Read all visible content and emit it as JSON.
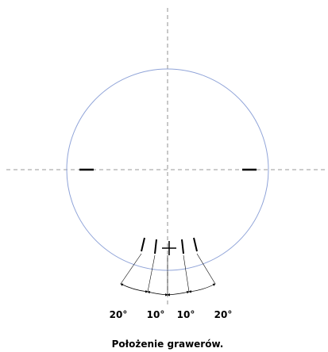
{
  "angle_labels": [
    "20°",
    "10°",
    "10°",
    "20°"
  ],
  "caption": "Położenie grawerów."
}
